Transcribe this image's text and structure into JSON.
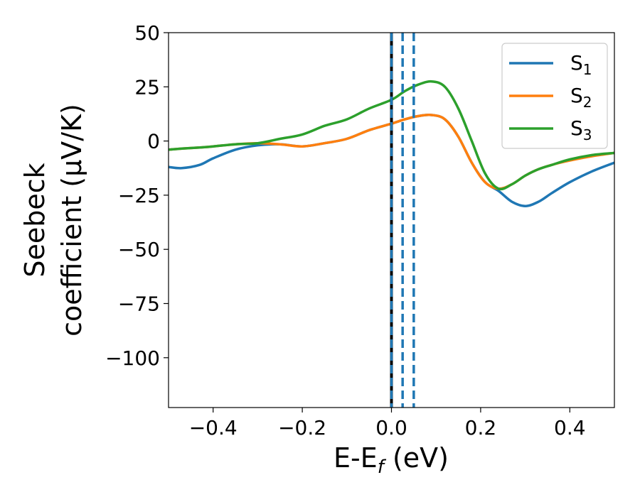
{
  "chart_data": {
    "type": "line",
    "xlabel": "E-E",
    "xlabel_sub": "f",
    "xlabel_unit": " (eV)",
    "ylabel_line1": "Seebeck",
    "ylabel_line2": "coefficient  (μV/K)",
    "xlim": [
      -0.5,
      0.5
    ],
    "ylim": [
      -123,
      50
    ],
    "xticks": [
      -0.4,
      -0.2,
      0.0,
      0.2,
      0.4
    ],
    "xtick_labels": [
      "−0.4",
      "−0.2",
      "0.0",
      "0.2",
      "0.4"
    ],
    "yticks": [
      50,
      25,
      0,
      -25,
      -50,
      -75,
      -100
    ],
    "ytick_labels": [
      "50",
      "25",
      "0",
      "−25",
      "−50",
      "−75",
      "−100"
    ],
    "grid": false,
    "legend_position": "top-right",
    "series": [
      {
        "name": "S",
        "sub": "1",
        "color": "#1f77b4",
        "x": [
          -0.5,
          -0.47,
          -0.43,
          -0.4,
          -0.35,
          -0.3,
          -0.25,
          -0.2,
          -0.15,
          -0.1,
          -0.05,
          0.0,
          0.03,
          0.06,
          0.09,
          0.12,
          0.15,
          0.18,
          0.21,
          0.24,
          0.27,
          0.3,
          0.33,
          0.36,
          0.4,
          0.45,
          0.5
        ],
        "y": [
          -12,
          -12.5,
          -11,
          -8,
          -4,
          -2,
          -1.5,
          -2.5,
          -1,
          1,
          5,
          8,
          10,
          11.5,
          12,
          10,
          2,
          -10,
          -19,
          -23,
          -28,
          -30,
          -28,
          -24,
          -19,
          -14,
          -10
        ]
      },
      {
        "name": "S",
        "sub": "2",
        "color": "#ff7f0e",
        "x": [
          -0.5,
          -0.47,
          -0.43,
          -0.4,
          -0.35,
          -0.3,
          -0.25,
          -0.2,
          -0.15,
          -0.1,
          -0.05,
          0.0,
          0.03,
          0.06,
          0.09,
          0.12,
          0.15,
          0.18,
          0.21,
          0.24,
          0.27,
          0.3,
          0.33,
          0.36,
          0.4,
          0.45,
          0.5
        ],
        "y": [
          -4,
          -3.5,
          -3,
          -2.5,
          -1.5,
          -1,
          -1.5,
          -2.5,
          -1,
          1,
          5,
          8,
          10,
          11.5,
          12,
          10,
          2,
          -10,
          -19,
          -22,
          -20,
          -16,
          -13,
          -11,
          -9,
          -7,
          -5.5
        ]
      },
      {
        "name": "S",
        "sub": "3",
        "color": "#2ca02c",
        "x": [
          -0.5,
          -0.47,
          -0.43,
          -0.4,
          -0.35,
          -0.3,
          -0.25,
          -0.2,
          -0.15,
          -0.1,
          -0.05,
          0.0,
          0.03,
          0.06,
          0.09,
          0.12,
          0.15,
          0.18,
          0.21,
          0.24,
          0.27,
          0.3,
          0.33,
          0.36,
          0.4,
          0.45,
          0.5
        ],
        "y": [
          -4,
          -3.5,
          -3,
          -2.5,
          -1.5,
          -1,
          1,
          3,
          7,
          10,
          15,
          19,
          23,
          26,
          27.5,
          25,
          15,
          0,
          -15,
          -22,
          -20,
          -16,
          -13,
          -11,
          -8.5,
          -6.5,
          -5.5
        ]
      }
    ],
    "vlines": [
      {
        "x": 0.0,
        "color": "#000000",
        "style": "solid"
      },
      {
        "x": 0.0,
        "color": "#1f77b4",
        "style": "dashed"
      },
      {
        "x": 0.025,
        "color": "#1f77b4",
        "style": "dashed"
      },
      {
        "x": 0.05,
        "color": "#1f77b4",
        "style": "dashed"
      }
    ]
  }
}
